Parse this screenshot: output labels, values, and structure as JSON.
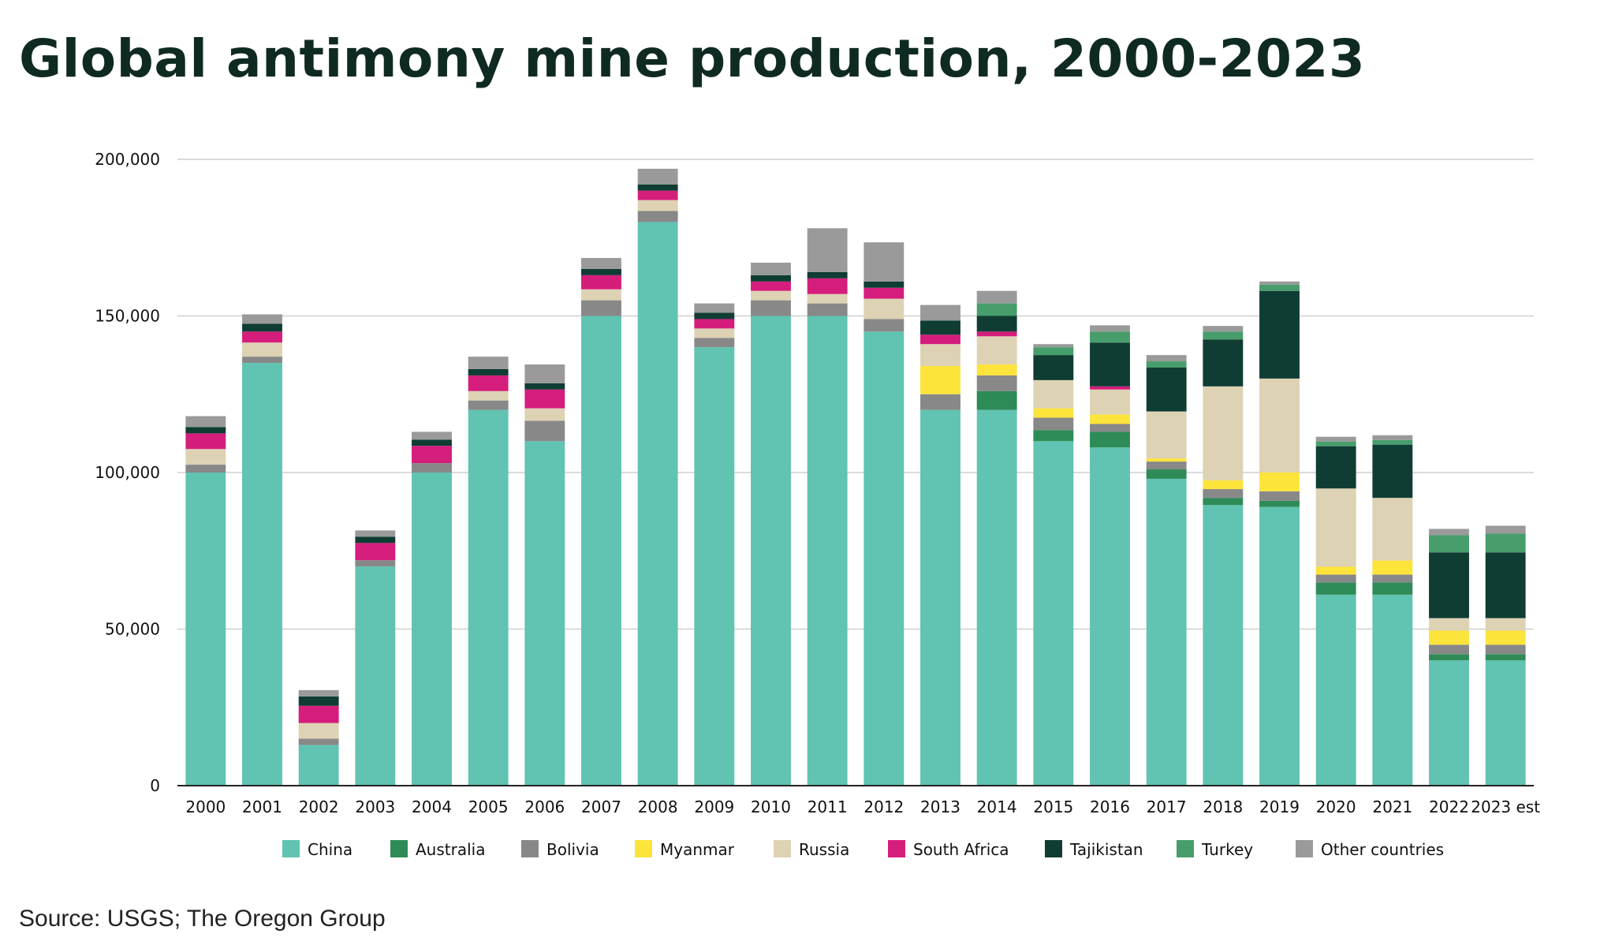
{
  "title": "Global antimony mine production, 2000-2023",
  "source": "Source: USGS; The Oregon Group",
  "chart_data": {
    "type": "bar",
    "stacked": true,
    "categories": [
      "2000",
      "2001",
      "2002",
      "2003",
      "2004",
      "2005",
      "2006",
      "2007",
      "2008",
      "2009",
      "2010",
      "2011",
      "2012",
      "2013",
      "2014",
      "2015",
      "2016",
      "2017",
      "2018",
      "2019",
      "2020",
      "2021",
      "2022",
      "2023 est"
    ],
    "ylim": [
      0,
      200000
    ],
    "yticks": [
      0,
      50000,
      100000,
      150000,
      200000
    ],
    "ytick_labels": [
      "0",
      "50,000",
      "100,000",
      "150,000",
      "200,000"
    ],
    "grid": true,
    "legend_position": "bottom",
    "series": [
      {
        "name": "China",
        "color": "#61c3b1",
        "values": [
          100000,
          135000,
          13000,
          70000,
          100000,
          120000,
          110000,
          150000,
          180000,
          140000,
          150000,
          150000,
          145000,
          120000,
          120000,
          110000,
          108000,
          98000,
          89600,
          89000,
          61000,
          61000,
          40000,
          40000
        ]
      },
      {
        "name": "Australia",
        "color": "#2e8b57",
        "values": [
          0,
          0,
          0,
          0,
          0,
          0,
          0,
          0,
          0,
          0,
          0,
          0,
          0,
          0,
          6000,
          3500,
          5000,
          3000,
          2300,
          2000,
          3900,
          3900,
          2000,
          2000
        ]
      },
      {
        "name": "Bolivia",
        "color": "#888888",
        "values": [
          2500,
          2000,
          2000,
          2000,
          3000,
          3000,
          6500,
          5000,
          3500,
          3000,
          5000,
          4000,
          4000,
          5000,
          5000,
          4000,
          2500,
          2500,
          2800,
          3000,
          2500,
          2500,
          3000,
          3000
        ]
      },
      {
        "name": "Myanmar",
        "color": "#fde43a",
        "values": [
          0,
          0,
          0,
          0,
          0,
          0,
          0,
          0,
          0,
          0,
          0,
          0,
          0,
          9000,
          3500,
          3000,
          3000,
          1000,
          2800,
          6000,
          2500,
          4500,
          4500,
          4500
        ]
      },
      {
        "name": "Russia",
        "color": "#ddd2b4",
        "values": [
          5000,
          4500,
          5000,
          0,
          0,
          3000,
          4000,
          3500,
          3500,
          3000,
          3000,
          3000,
          6500,
          7000,
          9000,
          9000,
          8000,
          15000,
          30000,
          30000,
          25000,
          20000,
          4000,
          4000
        ]
      },
      {
        "name": "South Africa",
        "color": "#d51d7c",
        "values": [
          5000,
          3500,
          5500,
          5500,
          5500,
          5000,
          6000,
          4500,
          3000,
          3000,
          3000,
          5000,
          3500,
          3000,
          1500,
          0,
          1000,
          0,
          0,
          0,
          0,
          0,
          0,
          0
        ]
      },
      {
        "name": "Tajikistan",
        "color": "#0f3d33",
        "values": [
          2000,
          2500,
          3000,
          2000,
          2000,
          2000,
          2000,
          2000,
          2000,
          2000,
          2000,
          2000,
          2000,
          4500,
          5000,
          8000,
          14000,
          14000,
          15000,
          28000,
          13500,
          17000,
          21000,
          21000
        ]
      },
      {
        "name": "Turkey",
        "color": "#479d6b",
        "values": [
          0,
          0,
          0,
          0,
          0,
          0,
          0,
          0,
          0,
          0,
          0,
          0,
          0,
          0,
          4000,
          2500,
          3500,
          2000,
          2500,
          2000,
          1500,
          1500,
          5500,
          6000
        ]
      },
      {
        "name": "Other countries",
        "color": "#9a9a9a",
        "values": [
          3500,
          3000,
          2000,
          2000,
          2500,
          4000,
          6000,
          3500,
          5000,
          3000,
          4000,
          14000,
          12500,
          5000,
          4000,
          1000,
          2000,
          2000,
          1800,
          1000,
          1500,
          1500,
          2000,
          2500
        ]
      }
    ]
  }
}
